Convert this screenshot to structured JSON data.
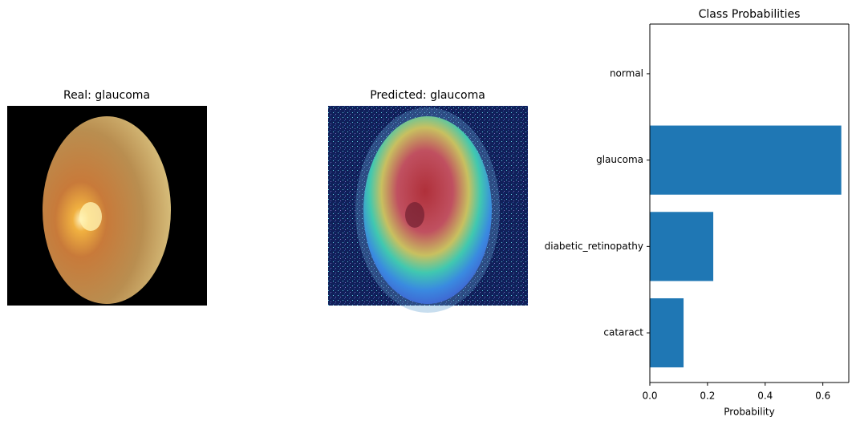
{
  "panels": [
    {
      "title": "Real: glaucoma"
    },
    {
      "title": "Predicted: glaucoma"
    }
  ],
  "chart_data": {
    "type": "barh",
    "title": "Class Probabilities",
    "xlabel": "Probability",
    "categories": [
      "normal",
      "glaucoma",
      "diabetic_retinopathy",
      "cataract"
    ],
    "values": [
      0,
      0.664,
      0.22,
      0.117
    ],
    "color": "#1f77b4",
    "xlim": [
      0,
      0.69
    ],
    "xticks": [
      {
        "value": 0,
        "label": "0.0"
      },
      0.2,
      0.4,
      0.6
    ]
  }
}
